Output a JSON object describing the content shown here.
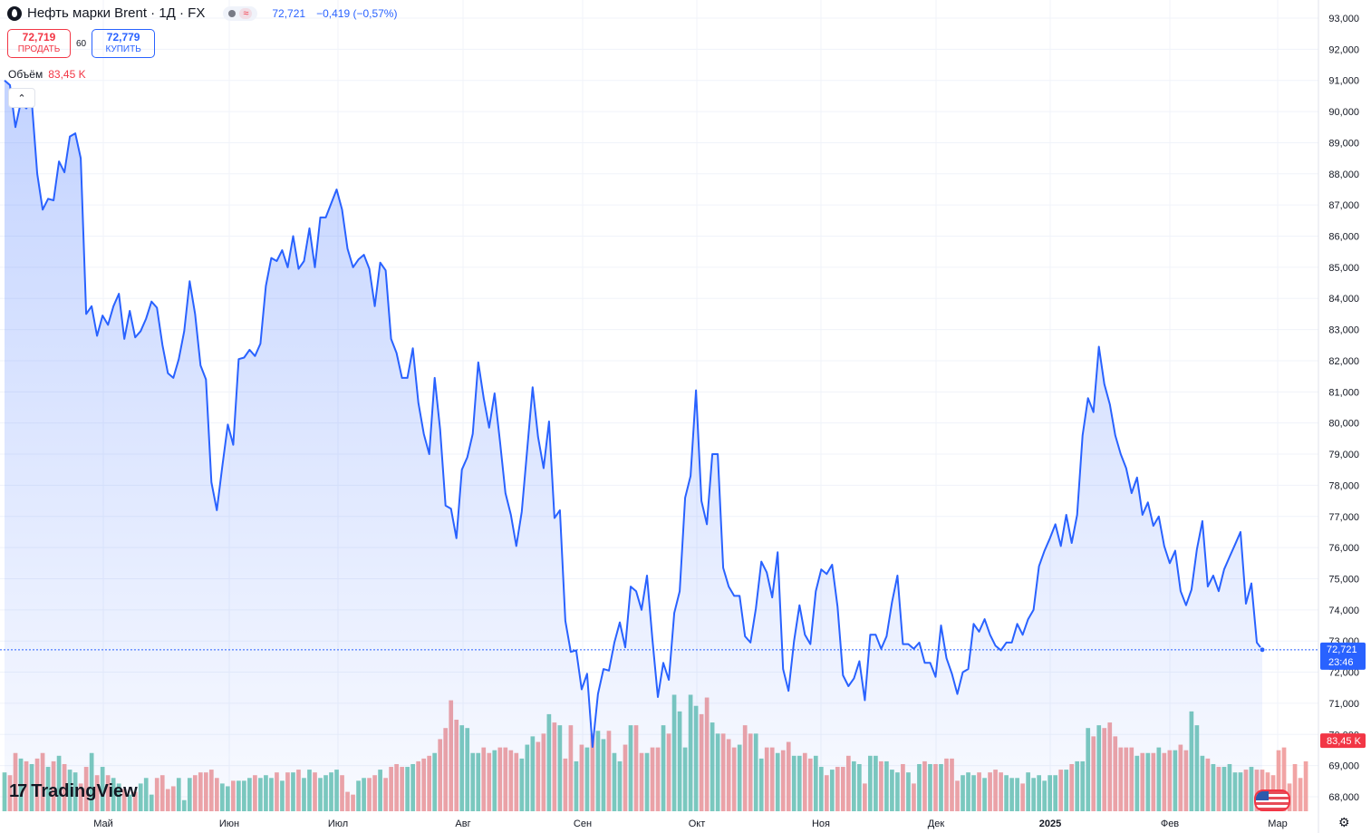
{
  "header": {
    "title": "Нефть марки Brent · 1Д · FX",
    "status_icon": "wave-icon",
    "last_value": "72,721",
    "change": "−0,419 (−0,57%)"
  },
  "trade": {
    "sell_price": "72,719",
    "sell_label": "ПРОДАТЬ",
    "spread": "60",
    "buy_price": "72,779",
    "buy_label": "КУПИТЬ"
  },
  "volume": {
    "label": "Объём",
    "value": "83,45 K"
  },
  "branding": {
    "logo": "TradingView"
  },
  "colors": {
    "line": "#2962ff",
    "vol_up": "#6fc5b5",
    "vol_down": "#ef9a9a",
    "last_badge": "#2962ff",
    "vol_badge": "#f23645"
  },
  "chart_data": {
    "type": "area",
    "title": "Нефть марки Brent · 1Д · FX",
    "y_ticks": [
      "93,000",
      "92,000",
      "91,000",
      "90,000",
      "89,000",
      "88,000",
      "87,000",
      "86,000",
      "85,000",
      "84,000",
      "83,000",
      "82,000",
      "81,000",
      "80,000",
      "79,000",
      "78,000",
      "77,000",
      "76,000",
      "75,000",
      "74,000",
      "73,000",
      "72,000",
      "71,000",
      "70,000",
      "69,000",
      "68,000"
    ],
    "x_ticks": [
      "Май",
      "Июн",
      "Июл",
      "Авг",
      "Сен",
      "Окт",
      "Ноя",
      "Дек",
      "2025",
      "Фев",
      "Мар"
    ],
    "ylim": [
      68,
      93
    ],
    "last_price_label": "72,721",
    "countdown": "23:46",
    "volume_badge": "83,45 K",
    "grid": true,
    "price": [
      91.0,
      90.85,
      89.5,
      90.3,
      90.1,
      90.35,
      88.0,
      86.85,
      87.2,
      87.15,
      88.4,
      88.05,
      89.2,
      89.3,
      88.5,
      83.5,
      83.75,
      82.8,
      83.45,
      83.15,
      83.75,
      84.15,
      82.7,
      83.6,
      82.75,
      82.95,
      83.35,
      83.9,
      83.7,
      82.5,
      81.6,
      81.45,
      82.05,
      82.95,
      84.55,
      83.5,
      81.85,
      81.4,
      78.1,
      77.2,
      78.6,
      79.95,
      79.3,
      82.05,
      82.1,
      82.35,
      82.15,
      82.55,
      84.4,
      85.3,
      85.2,
      85.55,
      85.0,
      86.0,
      84.95,
      85.2,
      86.25,
      85.0,
      86.6,
      86.6,
      87.05,
      87.5,
      86.85,
      85.6,
      85.0,
      85.25,
      85.4,
      84.95,
      83.75,
      85.15,
      84.9,
      82.7,
      82.25,
      81.45,
      81.45,
      82.4,
      80.65,
      79.65,
      79.0,
      81.45,
      79.8,
      77.35,
      77.25,
      76.3,
      78.5,
      78.9,
      79.65,
      81.95,
      80.8,
      79.85,
      80.95,
      79.4,
      77.75,
      77.05,
      76.05,
      77.15,
      79.15,
      81.15,
      79.55,
      78.55,
      80.05,
      76.95,
      77.2,
      73.65,
      72.65,
      72.7,
      71.45,
      71.95,
      69.6,
      71.3,
      72.1,
      72.05,
      72.95,
      73.6,
      72.8,
      74.75,
      74.6,
      74.0,
      75.1,
      73.05,
      71.2,
      72.3,
      71.75,
      73.9,
      74.6,
      77.6,
      78.3,
      81.05,
      77.5,
      76.75,
      79.0,
      79.0,
      75.35,
      74.75,
      74.45,
      74.45,
      73.15,
      72.95,
      74.05,
      75.55,
      75.2,
      74.4,
      75.85,
      72.1,
      71.4,
      73.0,
      74.15,
      73.2,
      72.9,
      74.6,
      75.3,
      75.15,
      75.45,
      74.1,
      71.9,
      71.55,
      71.8,
      72.35,
      71.1,
      73.2,
      73.2,
      72.75,
      73.15,
      74.25,
      75.1,
      72.9,
      72.9,
      72.75,
      72.95,
      72.3,
      72.3,
      71.85,
      73.5,
      72.45,
      71.95,
      71.3,
      72.0,
      72.1,
      73.55,
      73.3,
      73.7,
      73.2,
      72.85,
      72.7,
      72.95,
      72.95,
      73.55,
      73.2,
      73.7,
      74.0,
      75.4,
      75.9,
      76.3,
      76.75,
      76.05,
      77.05,
      76.15,
      77.05,
      79.6,
      80.8,
      80.35,
      82.45,
      81.25,
      80.6,
      79.6,
      79.0,
      78.55,
      77.75,
      78.25,
      77.05,
      77.45,
      76.7,
      77.0,
      76.05,
      75.5,
      75.9,
      74.6,
      74.15,
      74.65,
      75.95,
      76.85,
      74.75,
      75.1,
      74.6,
      75.3,
      75.7,
      76.1,
      76.5,
      74.2,
      74.85,
      72.95,
      72.72
    ],
    "volume": [
      14,
      13,
      21,
      19,
      18,
      17,
      19,
      21,
      16,
      18,
      20,
      17,
      15,
      14,
      10,
      16,
      21,
      13,
      16,
      13,
      12,
      10,
      8,
      6,
      7,
      10,
      12,
      6,
      12,
      13,
      8,
      9,
      12,
      4,
      12,
      13,
      14,
      14,
      15,
      12,
      10,
      9,
      11,
      11,
      11,
      12,
      13,
      12,
      13,
      12,
      14,
      11,
      14,
      14,
      15,
      12,
      15,
      14,
      12,
      13,
      14,
      15,
      13,
      7,
      6,
      11,
      12,
      12,
      13,
      15,
      12,
      16,
      17,
      16,
      16,
      17,
      18,
      19,
      20,
      21,
      26,
      30,
      40,
      33,
      31,
      30,
      21,
      21,
      23,
      21,
      22,
      23,
      23,
      22,
      21,
      19,
      24,
      27,
      25,
      28,
      35,
      32,
      31,
      19,
      31,
      18,
      24,
      23,
      28,
      29,
      26,
      29,
      21,
      18,
      24,
      31,
      31,
      21,
      21,
      23,
      23,
      31,
      28,
      42,
      36,
      23,
      42,
      38,
      35,
      41,
      32,
      28,
      28,
      26,
      23,
      24,
      31,
      28,
      28,
      19,
      23,
      23,
      21,
      22,
      25,
      20,
      20,
      21,
      19,
      20,
      16,
      13,
      15,
      16,
      16,
      20,
      18,
      17,
      10,
      20,
      20,
      18,
      18,
      15,
      14,
      17,
      14,
      10,
      17,
      18,
      17,
      17,
      17,
      19,
      19,
      11,
      13,
      14,
      13,
      14,
      12,
      14,
      15,
      14,
      13,
      12,
      12,
      10,
      14,
      12,
      13,
      11,
      13,
      13,
      15,
      15,
      17,
      18,
      18,
      30,
      27,
      31,
      30,
      32,
      27,
      23,
      23,
      23,
      20,
      21,
      21,
      21,
      23,
      21,
      22,
      22,
      24,
      22,
      36,
      31,
      20,
      19,
      17,
      16,
      16,
      17,
      14,
      14,
      15,
      16,
      15,
      15,
      14,
      13,
      22,
      23,
      10,
      17,
      12,
      18
    ]
  }
}
